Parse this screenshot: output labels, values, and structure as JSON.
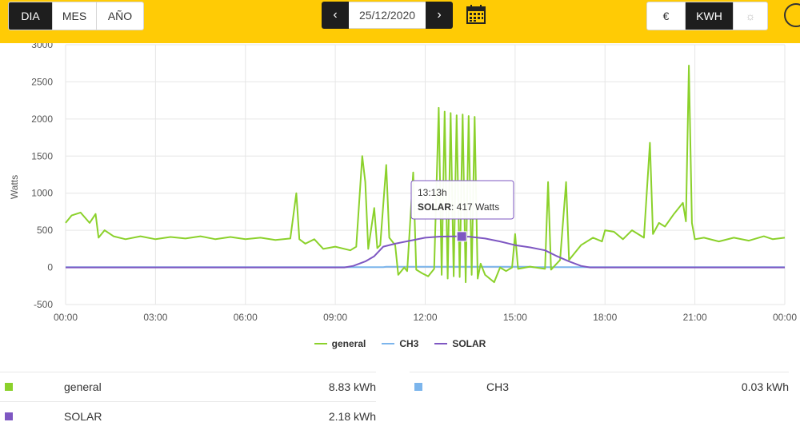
{
  "period_tabs": [
    {
      "label": "DIA",
      "active": true
    },
    {
      "label": "MES",
      "active": false
    },
    {
      "label": "AÑO",
      "active": false
    }
  ],
  "date_nav": {
    "prev": "‹",
    "date": "25/12/2020",
    "next": "›",
    "calendar_icon": "calendar-icon"
  },
  "unit_tabs": [
    {
      "label": "€",
      "active": false
    },
    {
      "label": "KWH",
      "active": true
    },
    {
      "label": "☼",
      "active": false
    }
  ],
  "chart_data": {
    "type": "line",
    "ylabel": "Watts",
    "ylim": [
      -500,
      3000
    ],
    "yticks": [
      "-500",
      "0",
      "500",
      "1000",
      "1500",
      "2000",
      "2500",
      "3000"
    ],
    "xticks": [
      "00:00",
      "03:00",
      "06:00",
      "09:00",
      "12:00",
      "15:00",
      "18:00",
      "21:00",
      "00:00"
    ],
    "xlim_hours": [
      0,
      24
    ],
    "grid": true,
    "legend_position": "bottom",
    "series": [
      {
        "name": "general",
        "color": "#8bd12b",
        "points": [
          [
            0,
            600
          ],
          [
            0.2,
            700
          ],
          [
            0.5,
            740
          ],
          [
            0.8,
            600
          ],
          [
            1,
            720
          ],
          [
            1.1,
            400
          ],
          [
            1.3,
            500
          ],
          [
            1.6,
            420
          ],
          [
            2,
            380
          ],
          [
            2.5,
            420
          ],
          [
            3,
            380
          ],
          [
            3.5,
            410
          ],
          [
            4,
            390
          ],
          [
            4.5,
            420
          ],
          [
            5,
            380
          ],
          [
            5.5,
            410
          ],
          [
            6,
            380
          ],
          [
            6.5,
            400
          ],
          [
            7,
            370
          ],
          [
            7.5,
            390
          ],
          [
            7.7,
            1000
          ],
          [
            7.8,
            380
          ],
          [
            8,
            320
          ],
          [
            8.3,
            380
          ],
          [
            8.6,
            250
          ],
          [
            9,
            280
          ],
          [
            9.5,
            230
          ],
          [
            9.7,
            280
          ],
          [
            9.9,
            1500
          ],
          [
            10,
            1150
          ],
          [
            10.1,
            250
          ],
          [
            10.3,
            800
          ],
          [
            10.4,
            260
          ],
          [
            10.5,
            300
          ],
          [
            10.7,
            1380
          ],
          [
            10.8,
            400
          ],
          [
            11,
            300
          ],
          [
            11.1,
            -100
          ],
          [
            11.3,
            0
          ],
          [
            11.4,
            -50
          ],
          [
            11.6,
            1280
          ],
          [
            11.7,
            -30
          ],
          [
            11.9,
            -80
          ],
          [
            12.1,
            -120
          ],
          [
            12.3,
            -20
          ],
          [
            12.45,
            2150
          ],
          [
            12.55,
            -100
          ],
          [
            12.65,
            2100
          ],
          [
            12.75,
            -150
          ],
          [
            12.85,
            2080
          ],
          [
            12.95,
            -120
          ],
          [
            13.05,
            2050
          ],
          [
            13.15,
            -130
          ],
          [
            13.25,
            2060
          ],
          [
            13.35,
            -200
          ],
          [
            13.45,
            2040
          ],
          [
            13.55,
            -100
          ],
          [
            13.65,
            2030
          ],
          [
            13.75,
            -150
          ],
          [
            13.85,
            50
          ],
          [
            14,
            -100
          ],
          [
            14.3,
            -200
          ],
          [
            14.5,
            0
          ],
          [
            14.7,
            -50
          ],
          [
            14.9,
            0
          ],
          [
            15,
            450
          ],
          [
            15.1,
            -20
          ],
          [
            15.5,
            10
          ],
          [
            16,
            -20
          ],
          [
            16.1,
            1150
          ],
          [
            16.2,
            -30
          ],
          [
            16.5,
            100
          ],
          [
            16.7,
            1150
          ],
          [
            16.8,
            100
          ],
          [
            17.2,
            300
          ],
          [
            17.6,
            400
          ],
          [
            17.9,
            350
          ],
          [
            18,
            500
          ],
          [
            18.3,
            480
          ],
          [
            18.6,
            380
          ],
          [
            18.9,
            500
          ],
          [
            19.3,
            400
          ],
          [
            19.5,
            1680
          ],
          [
            19.6,
            450
          ],
          [
            19.8,
            600
          ],
          [
            20,
            550
          ],
          [
            20.3,
            720
          ],
          [
            20.6,
            870
          ],
          [
            20.7,
            620
          ],
          [
            20.8,
            2720
          ],
          [
            20.9,
            600
          ],
          [
            21,
            380
          ],
          [
            21.3,
            400
          ],
          [
            21.8,
            350
          ],
          [
            22.3,
            400
          ],
          [
            22.8,
            360
          ],
          [
            23.3,
            420
          ],
          [
            23.6,
            380
          ],
          [
            24,
            400
          ]
        ]
      },
      {
        "name": "CH3",
        "color": "#7cb5ec",
        "points": [
          [
            0,
            3
          ],
          [
            10.6,
            3
          ],
          [
            10.7,
            8
          ],
          [
            15.5,
            8
          ],
          [
            15.6,
            3
          ],
          [
            24,
            3
          ]
        ]
      },
      {
        "name": "SOLAR",
        "color": "#7e57c2",
        "points": [
          [
            0,
            0
          ],
          [
            9.3,
            0
          ],
          [
            9.6,
            20
          ],
          [
            10,
            80
          ],
          [
            10.3,
            150
          ],
          [
            10.6,
            280
          ],
          [
            11,
            320
          ],
          [
            11.5,
            360
          ],
          [
            12,
            400
          ],
          [
            12.5,
            415
          ],
          [
            13,
            418
          ],
          [
            13.22,
            417
          ],
          [
            13.5,
            412
          ],
          [
            14,
            390
          ],
          [
            14.5,
            350
          ],
          [
            15,
            300
          ],
          [
            15.5,
            270
          ],
          [
            16,
            230
          ],
          [
            16.4,
            150
          ],
          [
            16.8,
            80
          ],
          [
            17.2,
            20
          ],
          [
            17.5,
            0
          ],
          [
            24,
            0
          ]
        ]
      }
    ],
    "tooltip": {
      "time": "13:13h",
      "series": "SOLAR",
      "text": ": 417 Watts",
      "x_hour": 13.22,
      "y": 417
    }
  },
  "summary": [
    {
      "name": "general",
      "value": "8.83 kWh",
      "color": "#8bd12b"
    },
    {
      "name": "CH3",
      "value": "0.03 kWh",
      "color": "#7cb5ec"
    },
    {
      "name": "SOLAR",
      "value": "2.18 kWh",
      "color": "#7e57c2"
    }
  ]
}
